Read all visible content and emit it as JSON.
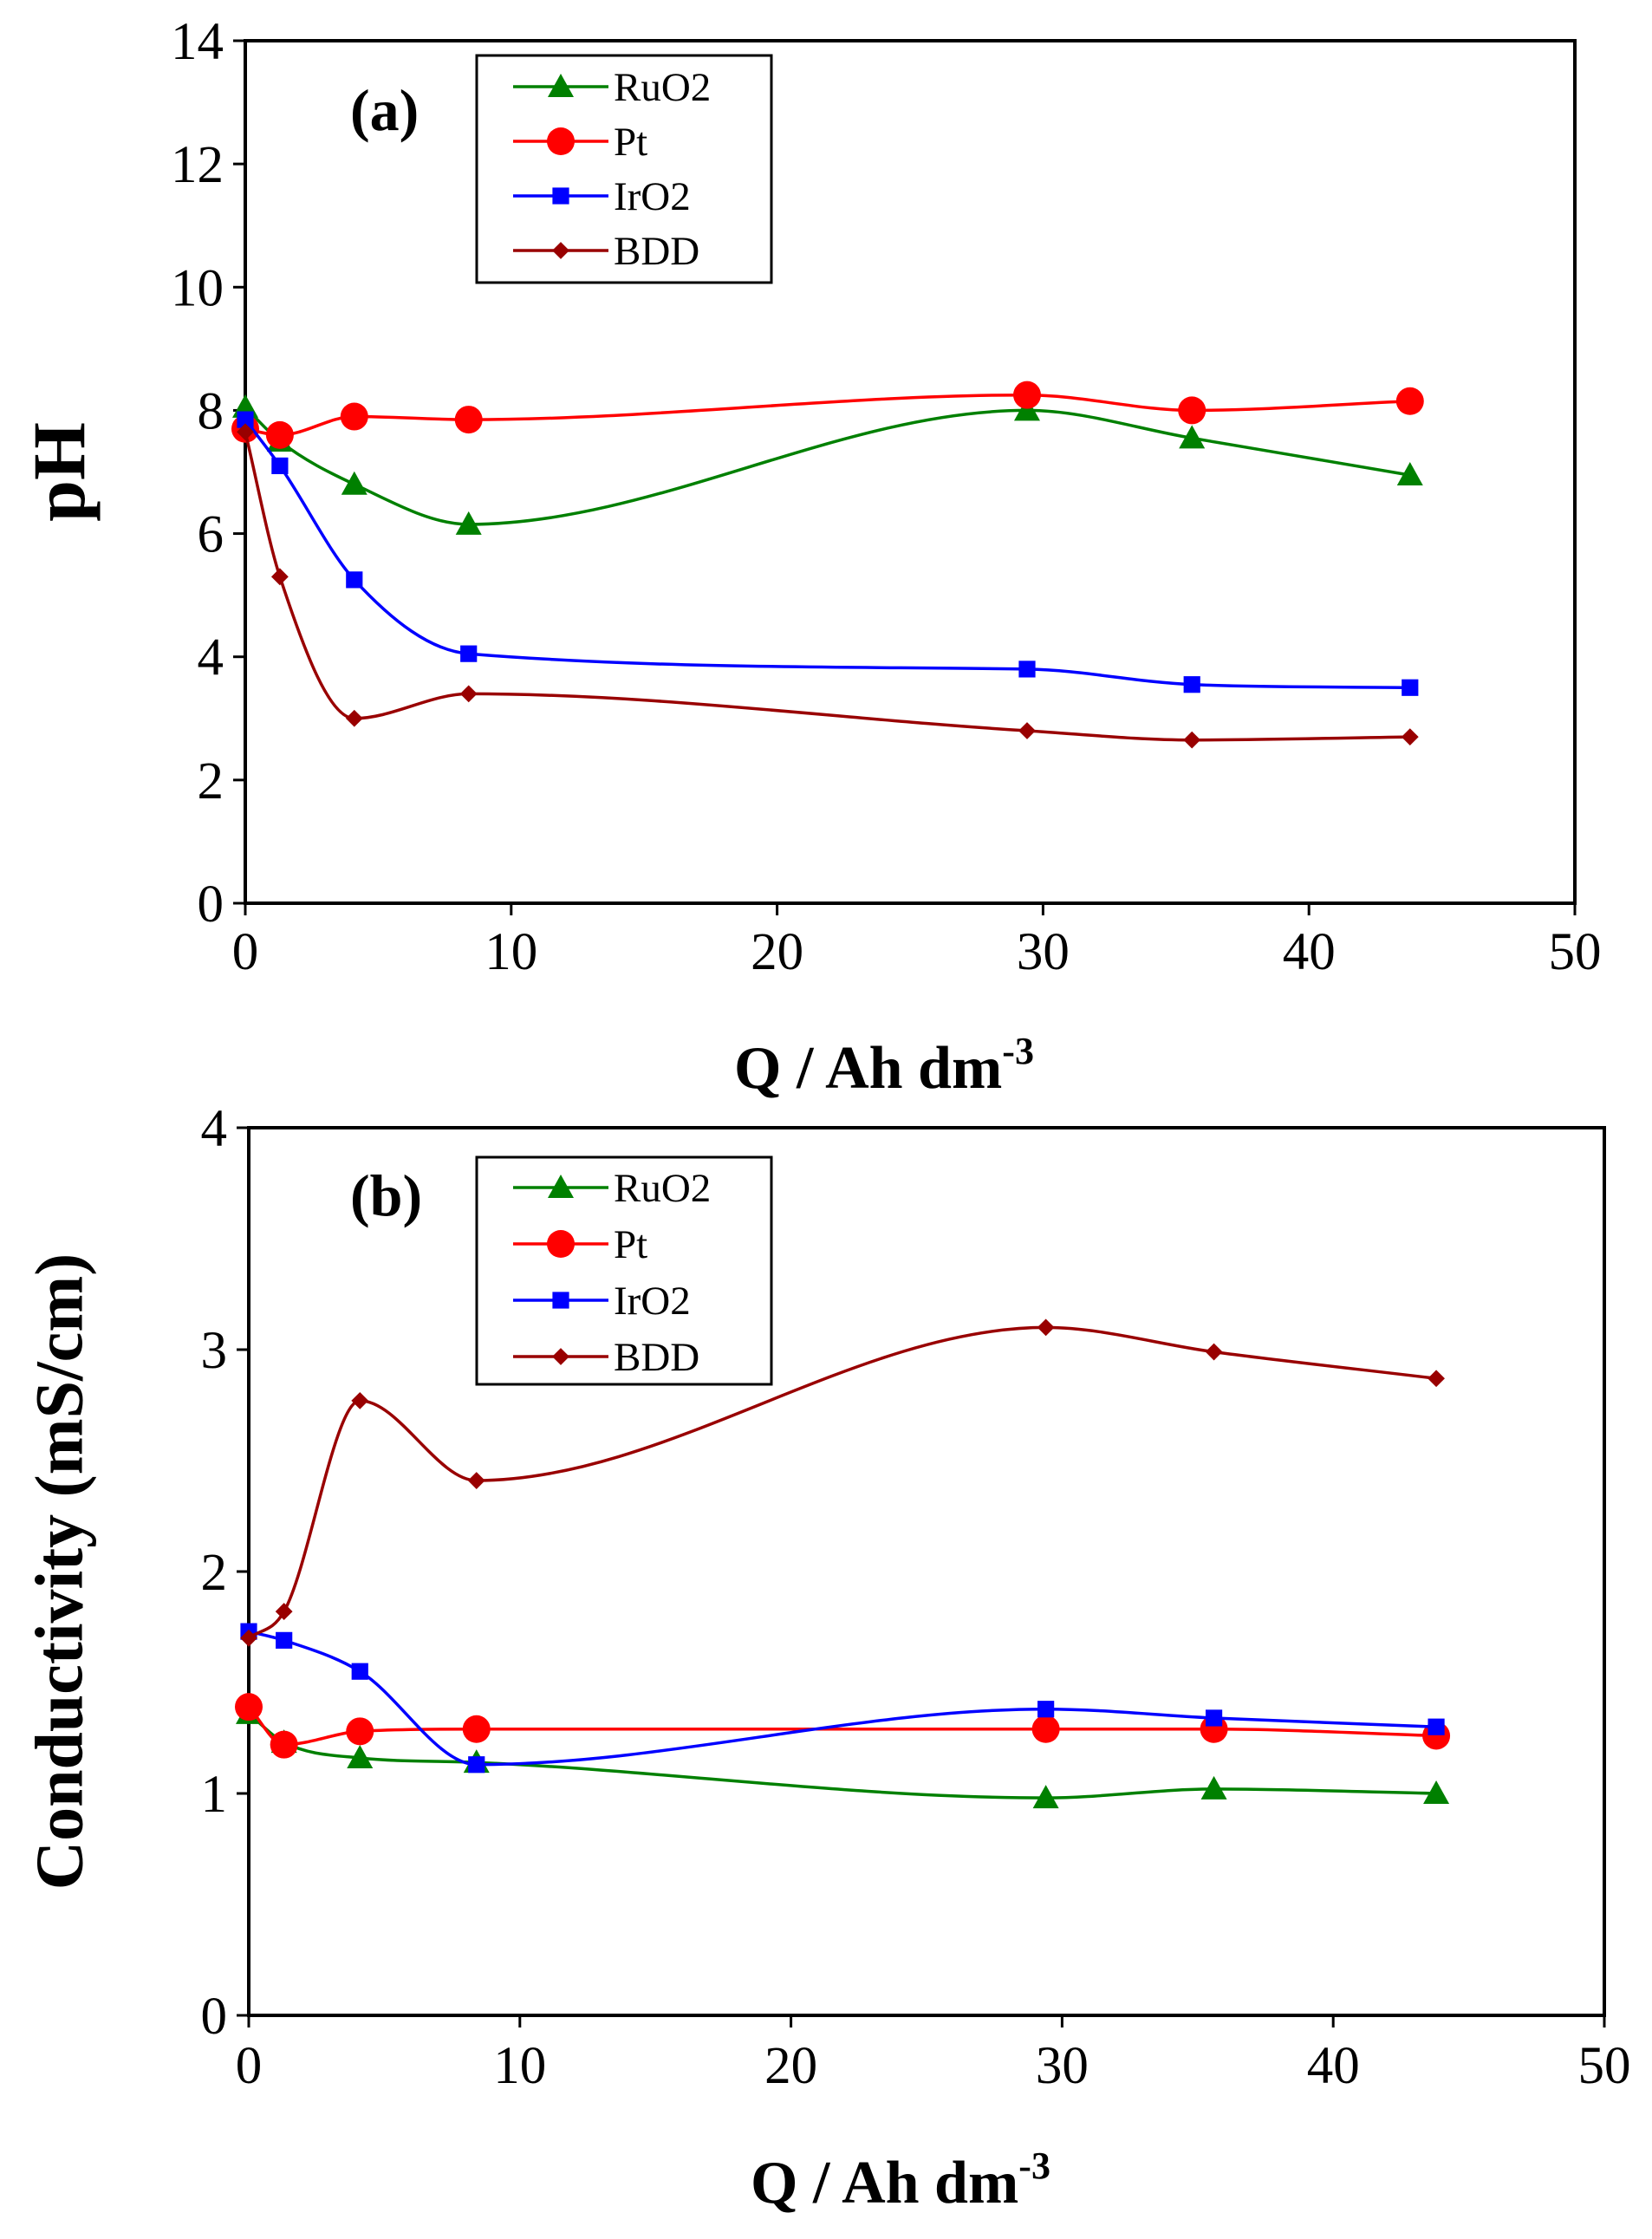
{
  "chart_data": [
    {
      "type": "line",
      "panel_label": "(a)",
      "xlabel": "Q / Ah dm",
      "xlabel_sup": "-3",
      "ylabel": "pH",
      "xlim": [
        0,
        50
      ],
      "ylim": [
        0,
        14
      ],
      "x_ticks": [
        "0",
        "10",
        "20",
        "30",
        "40",
        "50"
      ],
      "y_ticks": [
        "0",
        "2",
        "4",
        "6",
        "8",
        "10",
        "12",
        "14"
      ],
      "grid": false,
      "legend_position": "top-left",
      "series": [
        {
          "name": "RuO2",
          "color": "#008000",
          "marker": "triangle",
          "x": [
            0,
            1.3,
            4.1,
            8.4,
            29.4,
            35.6,
            43.8
          ],
          "y": [
            8.05,
            7.5,
            6.8,
            6.15,
            8.0,
            7.55,
            6.95
          ]
        },
        {
          "name": "Pt",
          "color": "#ff0000",
          "marker": "circle",
          "x": [
            0,
            1.3,
            4.1,
            8.4,
            29.4,
            35.6,
            43.8
          ],
          "y": [
            7.7,
            7.6,
            7.9,
            7.85,
            8.25,
            8.0,
            8.15
          ]
        },
        {
          "name": "IrO2",
          "color": "#0000ff",
          "marker": "square",
          "x": [
            0,
            1.3,
            4.1,
            8.4,
            29.4,
            35.6,
            43.8
          ],
          "y": [
            7.85,
            7.1,
            5.25,
            4.05,
            3.8,
            3.55,
            3.5
          ]
        },
        {
          "name": "BDD",
          "color": "#990000",
          "marker": "diamond",
          "x": [
            0,
            1.3,
            4.1,
            8.4,
            29.4,
            35.6,
            43.8
          ],
          "y": [
            7.65,
            5.3,
            3.0,
            3.4,
            2.8,
            2.65,
            2.7
          ]
        }
      ]
    },
    {
      "type": "line",
      "panel_label": "(b)",
      "xlabel": "Q / Ah dm",
      "xlabel_sup": "-3",
      "ylabel": "Conductivity (mS/cm)",
      "xlim": [
        0,
        50
      ],
      "ylim": [
        0,
        4
      ],
      "x_ticks": [
        "0",
        "10",
        "20",
        "30",
        "40",
        "50"
      ],
      "y_ticks": [
        "0",
        "1",
        "2",
        "3",
        "4"
      ],
      "grid": false,
      "legend_position": "top-left",
      "series": [
        {
          "name": "RuO2",
          "color": "#008000",
          "marker": "triangle",
          "x": [
            0,
            1.3,
            4.1,
            8.4,
            29.4,
            35.6,
            43.8
          ],
          "y": [
            1.36,
            1.23,
            1.16,
            1.14,
            0.98,
            1.02,
            1.0
          ]
        },
        {
          "name": "Pt",
          "color": "#ff0000",
          "marker": "circle",
          "x": [
            0,
            1.3,
            4.1,
            8.4,
            29.4,
            35.6,
            43.8
          ],
          "y": [
            1.39,
            1.22,
            1.28,
            1.29,
            1.29,
            1.29,
            1.26
          ]
        },
        {
          "name": "IrO2",
          "color": "#0000ff",
          "marker": "square",
          "x": [
            0,
            1.3,
            4.1,
            8.4,
            29.4,
            35.6,
            43.8
          ],
          "y": [
            1.73,
            1.69,
            1.55,
            1.13,
            1.38,
            1.34,
            1.3
          ]
        },
        {
          "name": "BDD",
          "color": "#990000",
          "marker": "diamond",
          "x": [
            0,
            1.3,
            4.1,
            8.4,
            29.4,
            35.6,
            43.8
          ],
          "y": [
            1.7,
            1.82,
            2.77,
            2.41,
            3.1,
            2.99,
            2.87
          ]
        }
      ]
    }
  ]
}
